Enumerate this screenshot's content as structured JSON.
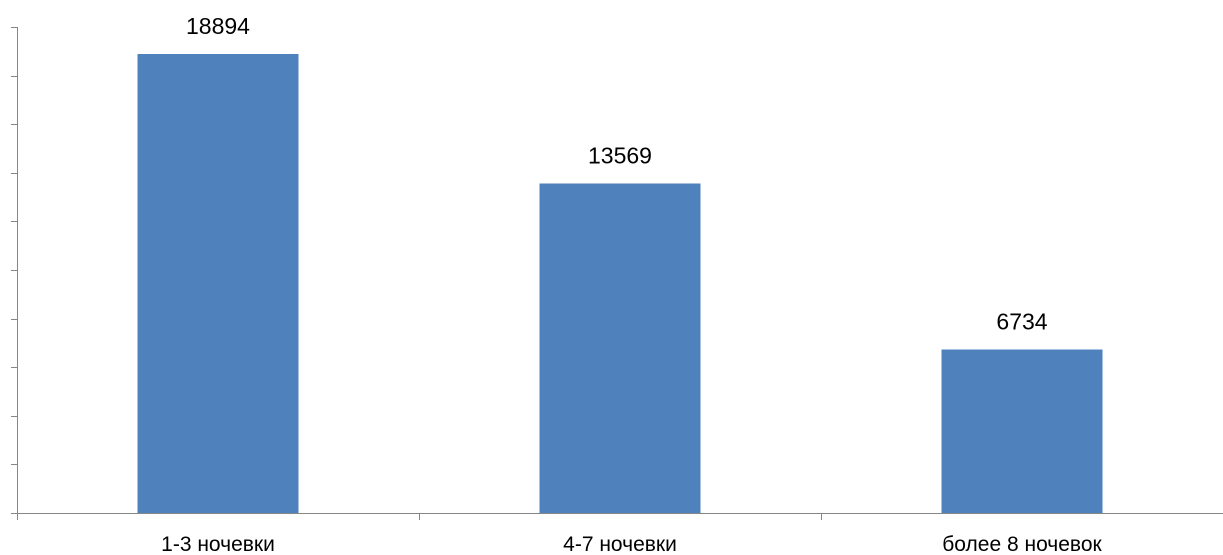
{
  "chart_data": {
    "type": "bar",
    "title": "",
    "xlabel": "",
    "ylabel": "",
    "categories": [
      "1-3 ночевки",
      "4-7 ночевки",
      "более 8 ночевок"
    ],
    "values": [
      18894,
      13569,
      6734
    ],
    "data_labels": [
      "18894",
      "13569",
      "6734"
    ],
    "ylim": [
      0,
      20000
    ],
    "y_major_step": 2000,
    "y_tick_labels_visible": false,
    "grid": false,
    "legend": "none",
    "bar_color": "#4f81bd"
  }
}
